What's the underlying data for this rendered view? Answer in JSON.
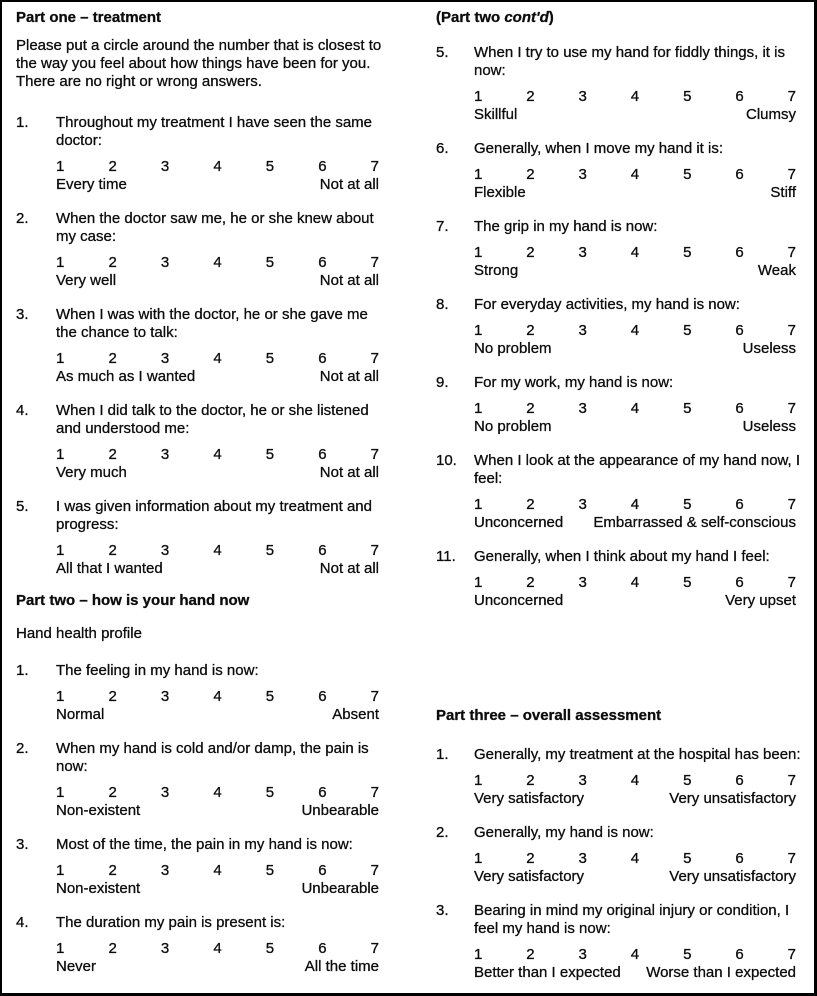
{
  "page": {
    "background": "#ffffff",
    "border_color": "#000000",
    "text_color": "#111111",
    "document_type": "questionnaire"
  },
  "scale": {
    "points": [
      "1",
      "2",
      "3",
      "4",
      "5",
      "6",
      "7"
    ]
  },
  "part_one": {
    "heading": "Part one – treatment",
    "intro": "Please put a circle around the number that is closest to\nthe way you feel about how things have been for you.\nThere are no right or wrong answers.",
    "questions": [
      {
        "num": "1.",
        "text": "Throughout my treatment I have seen the same\ndoctor:",
        "left": "Every time",
        "right": "Not at all"
      },
      {
        "num": "2.",
        "text": "When the doctor saw me, he or she knew about\nmy case:",
        "left": "Very well",
        "right": "Not at all"
      },
      {
        "num": "3.",
        "text": "When I was with the doctor, he or she gave me\nthe chance to talk:",
        "left": "As much as I wanted",
        "right": "Not at all"
      },
      {
        "num": "4.",
        "text": "When I did talk to the doctor, he or she listened\nand understood me:",
        "left": "Very much",
        "right": "Not at all"
      },
      {
        "num": "5.",
        "text": "I was given information about my treatment and\nprogress:",
        "left": "All that I wanted",
        "right": "Not at all"
      }
    ]
  },
  "part_two": {
    "heading": "Part two – how is your hand now",
    "subtitle": "Hand health profile",
    "contd_heading": {
      "pre": "(Part two ",
      "italic": "cont'd",
      "post": ")"
    },
    "questions": [
      {
        "num": "1.",
        "text": "The feeling in my hand is now:",
        "left": "Normal",
        "right": "Absent"
      },
      {
        "num": "2.",
        "text": "When my hand is cold and/or damp, the pain is\nnow:",
        "left": "Non-existent",
        "right": "Unbearable"
      },
      {
        "num": "3.",
        "text": "Most of the time, the pain in my hand is now:",
        "left": "Non-existent",
        "right": "Unbearable"
      },
      {
        "num": "4.",
        "text": "The duration my pain is present is:",
        "left": "Never",
        "right": "All the time"
      },
      {
        "num": "5.",
        "text": "When I try to use my hand for fiddly things, it is\nnow:",
        "left": "Skillful",
        "right": "Clumsy"
      },
      {
        "num": "6.",
        "text": "Generally, when I move my hand it is:",
        "left": "Flexible",
        "right": "Stiff"
      },
      {
        "num": "7.",
        "text": "The grip in my hand is now:",
        "left": "Strong",
        "right": "Weak"
      },
      {
        "num": "8.",
        "text": "For everyday activities, my hand is now:",
        "left": "No problem",
        "right": "Useless"
      },
      {
        "num": "9.",
        "text": "For my work, my hand is now:",
        "left": "No problem",
        "right": "Useless"
      },
      {
        "num": "10.",
        "text": "When I look at the appearance of my hand now, I\nfeel:",
        "left": "Unconcerned",
        "right": "Embarrassed & self-conscious"
      },
      {
        "num": "11.",
        "text": "Generally, when I think about my hand I feel:",
        "left": "Unconcerned",
        "right": "Very upset"
      }
    ]
  },
  "part_three": {
    "heading": "Part three – overall assessment",
    "questions": [
      {
        "num": "1.",
        "text": "Generally, my treatment at the hospital has been:",
        "left": "Very satisfactory",
        "right": "Very unsatisfactory"
      },
      {
        "num": "2.",
        "text": "Generally, my hand is now:",
        "left": "Very satisfactory",
        "right": "Very unsatisfactory"
      },
      {
        "num": "3.",
        "text": "Bearing in mind my original injury or condition, I\nfeel my hand is now:",
        "left": "Better than I expected",
        "right": "Worse than I expected"
      }
    ]
  }
}
